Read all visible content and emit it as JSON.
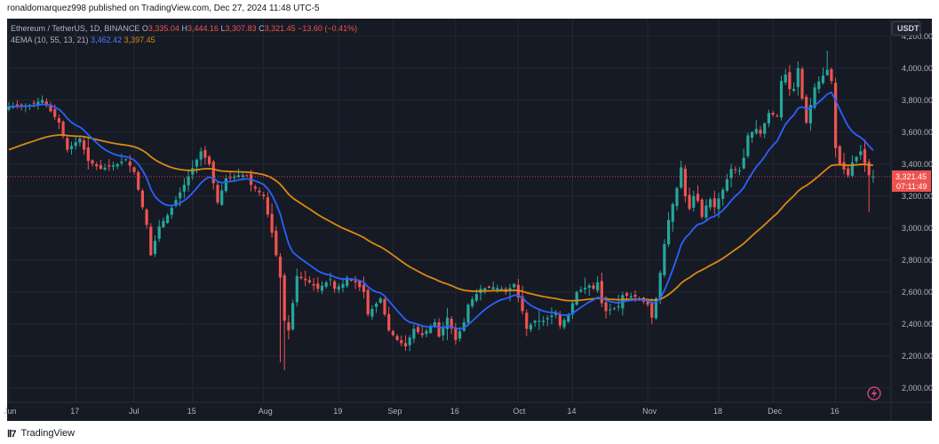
{
  "header": {
    "published_text": "ronaldomarquez998 published on TradingView.com, Dec 27, 2024 11:48 UTC-5"
  },
  "footer": {
    "brand": "TradingView"
  },
  "legend": {
    "symbol": "Ethereum / TetherUS, 1D, BINANCE",
    "ohlc": {
      "o_label": "O",
      "o": "3,335.04",
      "h_label": "H",
      "h": "3,444.16",
      "l_label": "L",
      "l": "3,307.83",
      "c_label": "C",
      "c": "3,321.45",
      "change": "−13.60 (−0.41%)"
    },
    "indicator_name": "4EMA (10, 55, 13, 21)",
    "ema_fast_value": "3,462.42",
    "ema_slow_value": "3,397.45"
  },
  "currency_button": "USDT",
  "price_tag": {
    "price": "3,321.45",
    "countdown": "07:11:49"
  },
  "colors": {
    "background": "#161a25",
    "up": "#26a69a",
    "down": "#ef5350",
    "ema_fast": "#2962ff",
    "ema_slow": "#d98a12",
    "text": "#b2b5be",
    "grid": "#242832"
  },
  "chart_data": {
    "type": "candlestick",
    "y_ticks": [
      "2,000.00",
      "2,200.00",
      "2,400.00",
      "2,600.00",
      "2,800.00",
      "3,000.00",
      "3,200.00",
      "3,400.00",
      "3,600.00",
      "3,800.00",
      "4,000.00",
      "4,200.00"
    ],
    "y_tick_values": [
      2000,
      2200,
      2400,
      2600,
      2800,
      3000,
      3200,
      3400,
      3600,
      3800,
      4000,
      4200
    ],
    "ylim": [
      1910,
      4310
    ],
    "x_labels": [
      {
        "label": "Jun",
        "day": 0
      },
      {
        "label": "17",
        "day": 16
      },
      {
        "label": "Jul",
        "day": 30
      },
      {
        "label": "15",
        "day": 44
      },
      {
        "label": "Aug",
        "day": 61
      },
      {
        "label": "19",
        "day": 79
      },
      {
        "label": "Sep",
        "day": 92
      },
      {
        "label": "16",
        "day": 107
      },
      {
        "label": "Oct",
        "day": 122
      },
      {
        "label": "14",
        "day": 135
      },
      {
        "label": "Nov",
        "day": 153
      },
      {
        "label": "18",
        "day": 170
      },
      {
        "label": "Dec",
        "day": 183
      },
      {
        "label": "16",
        "day": 198
      }
    ],
    "start_date": "2024-05-31",
    "anchors": [
      [
        0,
        3760
      ],
      [
        5,
        3770
      ],
      [
        8,
        3800
      ],
      [
        12,
        3660
      ],
      [
        14,
        3490
      ],
      [
        17,
        3560
      ],
      [
        19,
        3420
      ],
      [
        22,
        3370
      ],
      [
        26,
        3400
      ],
      [
        28,
        3430
      ],
      [
        30,
        3350
      ],
      [
        33,
        3020
      ],
      [
        34,
        2830
      ],
      [
        36,
        3010
      ],
      [
        38,
        3080
      ],
      [
        42,
        3270
      ],
      [
        46,
        3480
      ],
      [
        48,
        3400
      ],
      [
        50,
        3160
      ],
      [
        52,
        3310
      ],
      [
        55,
        3330
      ],
      [
        57,
        3330
      ],
      [
        58,
        3270
      ],
      [
        61,
        3200
      ],
      [
        63,
        2970
      ],
      [
        65,
        2690
      ],
      [
        66,
        2420
      ],
      [
        67,
        2360
      ],
      [
        69,
        2700
      ],
      [
        72,
        2660
      ],
      [
        74,
        2620
      ],
      [
        77,
        2680
      ],
      [
        78,
        2620
      ],
      [
        80,
        2650
      ],
      [
        81,
        2690
      ],
      [
        83,
        2660
      ],
      [
        85,
        2600
      ],
      [
        86,
        2460
      ],
      [
        89,
        2560
      ],
      [
        91,
        2360
      ],
      [
        93,
        2300
      ],
      [
        95,
        2260
      ],
      [
        97,
        2370
      ],
      [
        99,
        2330
      ],
      [
        102,
        2410
      ],
      [
        103,
        2320
      ],
      [
        105,
        2440
      ],
      [
        107,
        2300
      ],
      [
        109,
        2410
      ],
      [
        110,
        2520
      ],
      [
        113,
        2620
      ],
      [
        116,
        2630
      ],
      [
        118,
        2620
      ],
      [
        119,
        2600
      ],
      [
        121,
        2650
      ],
      [
        123,
        2480
      ],
      [
        124,
        2370
      ],
      [
        126,
        2420
      ],
      [
        128,
        2420
      ],
      [
        131,
        2470
      ],
      [
        132,
        2390
      ],
      [
        134,
        2460
      ],
      [
        136,
        2600
      ],
      [
        139,
        2640
      ],
      [
        140,
        2620
      ],
      [
        141,
        2660
      ],
      [
        142,
        2530
      ],
      [
        143,
        2480
      ],
      [
        146,
        2510
      ],
      [
        147,
        2580
      ],
      [
        150,
        2570
      ],
      [
        152,
        2540
      ],
      [
        153,
        2520
      ],
      [
        154,
        2440
      ],
      [
        155,
        2560
      ],
      [
        156,
        2720
      ],
      [
        157,
        2900
      ],
      [
        158,
        3050
      ],
      [
        160,
        3250
      ],
      [
        161,
        3380
      ],
      [
        162,
        3200
      ],
      [
        163,
        3120
      ],
      [
        164,
        3200
      ],
      [
        165,
        3170
      ],
      [
        166,
        3070
      ],
      [
        167,
        3140
      ],
      [
        168,
        3180
      ],
      [
        169,
        3130
      ],
      [
        171,
        3240
      ],
      [
        173,
        3370
      ],
      [
        175,
        3360
      ],
      [
        176,
        3440
      ],
      [
        177,
        3580
      ],
      [
        179,
        3620
      ],
      [
        180,
        3590
      ],
      [
        182,
        3720
      ],
      [
        184,
        3700
      ],
      [
        185,
        3920
      ],
      [
        186,
        3960
      ],
      [
        187,
        3870
      ],
      [
        188,
        3870
      ],
      [
        189,
        4000
      ],
      [
        190,
        3810
      ],
      [
        191,
        3660
      ],
      [
        193,
        3880
      ],
      [
        196,
        3990
      ],
      [
        197,
        3920
      ],
      [
        198,
        3500
      ],
      [
        199,
        3400
      ],
      [
        201,
        3330
      ],
      [
        202,
        3410
      ],
      [
        204,
        3480
      ],
      [
        206,
        3330
      ],
      [
        207,
        3321
      ]
    ],
    "series": [
      {
        "name": "EMA 13",
        "period": 13
      },
      {
        "name": "EMA 55",
        "period": 55
      }
    ],
    "last_close": 3321.45
  }
}
